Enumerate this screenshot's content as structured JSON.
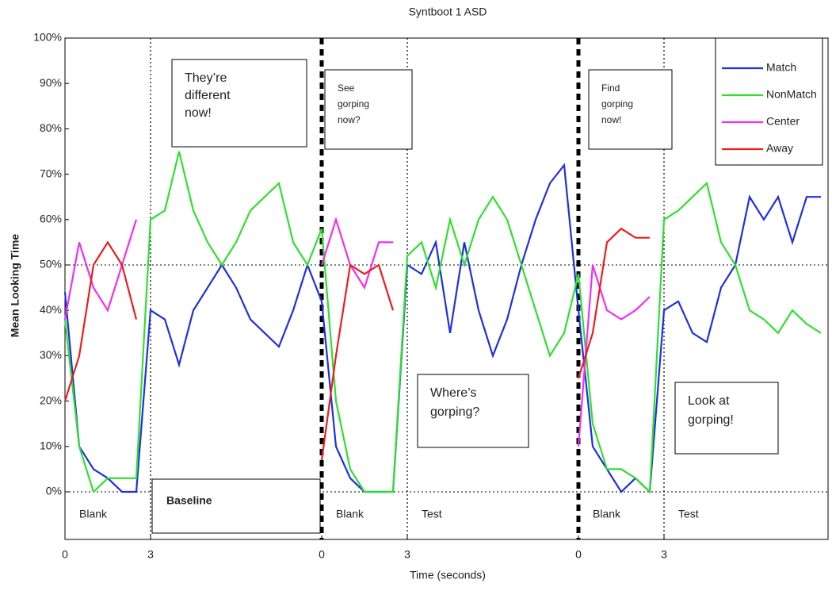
{
  "chart_data": {
    "type": "line",
    "title": "Syntboot 1 ASD",
    "xlabel": "Time (seconds)",
    "ylabel": "Mean Looking Time",
    "xlim": [
      0,
      26.75
    ],
    "ylim": [
      0,
      100
    ],
    "xticks": [
      {
        "value": 0,
        "label": "0"
      },
      3,
      {
        "value": 9,
        "label": "0"
      },
      {
        "value": 12,
        "label": "3"
      },
      {
        "value": 18,
        "label": "0"
      },
      {
        "value": 21,
        "label": "3"
      }
    ],
    "yticks": [
      {
        "value": 0,
        "label": "0%"
      },
      {
        "value": 10,
        "label": "10%"
      },
      {
        "value": 20,
        "label": "20%"
      },
      {
        "value": 30,
        "label": "30%"
      },
      {
        "value": 40,
        "label": "40%"
      },
      {
        "value": 50,
        "label": "50%"
      },
      {
        "value": 60,
        "label": "60%"
      },
      {
        "value": 70,
        "label": "70%"
      },
      {
        "value": 80,
        "label": "80%"
      },
      {
        "value": 90,
        "label": "90%"
      },
      {
        "value": 100,
        "label": "100%"
      }
    ],
    "legend": "upper right",
    "segments": [
      "Blank",
      "Baseline",
      "Blank",
      "Test",
      "Blank",
      "Test"
    ],
    "annotations": [
      [
        "They’re",
        "different",
        "now!"
      ],
      [
        "See",
        "gorping",
        "now?"
      ],
      [
        "Where’s",
        "gorping?"
      ],
      [
        "Find",
        "gorping",
        "now!"
      ],
      [
        "Look at",
        "gorping!"
      ]
    ],
    "x": [
      0,
      0.5,
      1,
      1.5,
      2,
      2.5,
      3,
      3.5,
      4,
      4.5,
      5,
      5.5,
      6,
      6.5,
      7,
      7.5,
      8,
      8.5,
      9,
      9.5,
      10,
      10.5,
      11,
      11.5,
      12,
      12.5,
      13,
      13.5,
      14,
      14.5,
      15,
      15.5,
      16,
      16.5,
      17,
      17.5,
      18,
      18.5,
      19,
      19.5,
      20,
      20.5,
      21,
      21.5,
      22,
      22.5,
      23,
      23.5,
      24,
      24.5,
      25,
      25.5,
      26,
      26.5
    ],
    "series": [
      {
        "name": "Match",
        "color": "#1f2fe0",
        "values": [
          44,
          10,
          5,
          3,
          0,
          0,
          40,
          38,
          28,
          40,
          45,
          50,
          45,
          38,
          35,
          32,
          40,
          50,
          42,
          10,
          3,
          0,
          0,
          0,
          50,
          48,
          55,
          35,
          55,
          40,
          30,
          38,
          50,
          60,
          68,
          72,
          40,
          10,
          5,
          0,
          3,
          0,
          40,
          42,
          35,
          33,
          45,
          50,
          65,
          60,
          65,
          55,
          65,
          65
        ]
      },
      {
        "name": "NonMatch",
        "color": "#2ee02e",
        "values": [
          38,
          10,
          0,
          3,
          3,
          3,
          60,
          62,
          75,
          62,
          55,
          50,
          55,
          62,
          65,
          68,
          55,
          50,
          58,
          20,
          5,
          0,
          0,
          0,
          52,
          55,
          45,
          60,
          50,
          60,
          65,
          60,
          50,
          40,
          30,
          35,
          48,
          15,
          5,
          5,
          3,
          0,
          60,
          62,
          65,
          68,
          55,
          50,
          40,
          38,
          35,
          40,
          37,
          35
        ]
      },
      {
        "name": "Center",
        "color": "#f22ef2",
        "values": [
          38,
          55,
          45,
          40,
          50,
          60,
          null,
          null,
          null,
          null,
          null,
          null,
          null,
          null,
          null,
          null,
          null,
          null,
          50,
          60,
          50,
          45,
          55,
          55,
          null,
          null,
          null,
          null,
          null,
          null,
          null,
          null,
          null,
          null,
          null,
          null,
          10,
          50,
          40,
          38,
          40,
          43,
          null,
          null,
          null,
          null,
          null,
          null,
          null,
          null,
          null,
          null,
          null,
          null
        ]
      },
      {
        "name": "Away",
        "color": "#ee1c1c",
        "values": [
          20,
          30,
          50,
          55,
          50,
          38,
          null,
          null,
          null,
          null,
          null,
          null,
          null,
          null,
          null,
          null,
          null,
          null,
          7,
          30,
          50,
          48,
          50,
          40,
          null,
          null,
          null,
          null,
          null,
          null,
          null,
          null,
          null,
          null,
          null,
          null,
          25,
          35,
          55,
          58,
          56,
          56,
          null,
          null,
          null,
          null,
          null,
          null,
          null,
          null,
          null,
          null,
          null,
          null
        ]
      }
    ]
  }
}
